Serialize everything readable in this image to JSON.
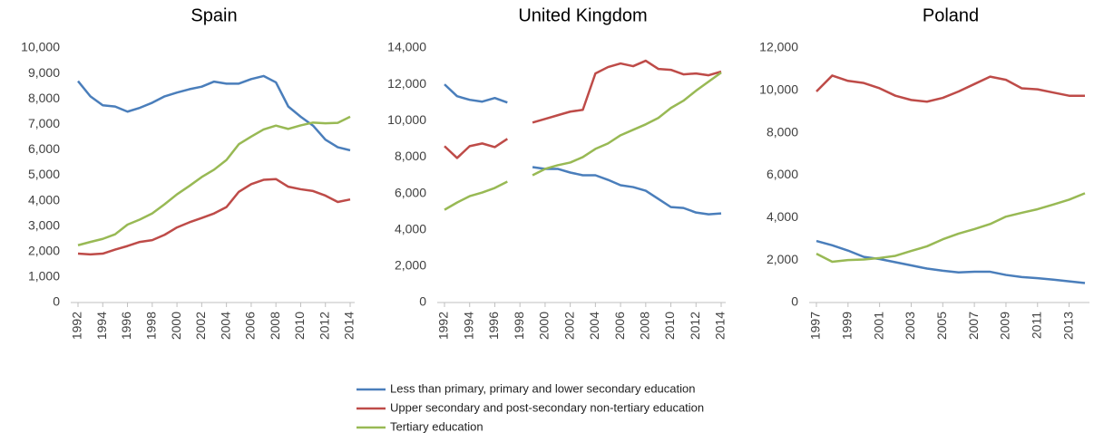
{
  "chart_data": [
    {
      "type": "line",
      "title": "Spain",
      "x": [
        1992,
        1993,
        1994,
        1995,
        1996,
        1997,
        1998,
        1999,
        2000,
        2001,
        2002,
        2003,
        2004,
        2005,
        2006,
        2007,
        2008,
        2009,
        2010,
        2011,
        2012,
        2013,
        2014
      ],
      "xlim": [
        1992,
        2014
      ],
      "xticks": [
        1992,
        1994,
        1996,
        1998,
        2000,
        2002,
        2004,
        2006,
        2008,
        2010,
        2012,
        2014
      ],
      "ylim": [
        0,
        10000
      ],
      "yticks": [
        0,
        {
          "value": 1000,
          "label": "1,000"
        },
        {
          "value": 2000,
          "label": "2,000"
        },
        {
          "value": 3000,
          "label": "3,000"
        },
        {
          "value": 4000,
          "label": "4,000"
        },
        {
          "value": 5000,
          "label": "5,000"
        },
        {
          "value": 6000,
          "label": "6,000"
        },
        {
          "value": 7000,
          "label": "7,000"
        },
        {
          "value": 8000,
          "label": "8,000"
        },
        {
          "value": 9000,
          "label": "9,000"
        },
        {
          "value": 10000,
          "label": "10,000"
        }
      ],
      "series": [
        {
          "name": "Less than primary, primary and lower secondary education",
          "color": "#4a7ebb",
          "values": [
            8700,
            8100,
            7750,
            7700,
            7500,
            7650,
            7850,
            8100,
            8250,
            8380,
            8480,
            8680,
            8600,
            8600,
            8780,
            8900,
            8650,
            7700,
            7300,
            6950,
            6400,
            6100,
            5980
          ]
        },
        {
          "name": "Upper secondary and post-secondary non-tertiary education",
          "color": "#be4b48",
          "values": [
            1920,
            1890,
            1920,
            2080,
            2220,
            2380,
            2450,
            2660,
            2950,
            3150,
            3320,
            3500,
            3750,
            4350,
            4650,
            4820,
            4850,
            4550,
            4450,
            4380,
            4200,
            3950,
            4050
          ]
        },
        {
          "name": "Tertiary education",
          "color": "#98b954",
          "values": [
            2250,
            2380,
            2500,
            2680,
            3060,
            3260,
            3500,
            3860,
            4250,
            4580,
            4930,
            5220,
            5600,
            6220,
            6520,
            6800,
            6950,
            6820,
            6960,
            7070,
            7040,
            7060,
            7300
          ]
        }
      ]
    },
    {
      "type": "line",
      "title": "United Kingdom",
      "x": [
        1992,
        1993,
        1994,
        1995,
        1996,
        1997,
        1998,
        1999,
        2000,
        2001,
        2002,
        2003,
        2004,
        2005,
        2006,
        2007,
        2008,
        2009,
        2010,
        2011,
        2012,
        2013,
        2014
      ],
      "xlim": [
        1992,
        2014
      ],
      "xticks": [
        1992,
        1994,
        1996,
        1998,
        2000,
        2002,
        2004,
        2006,
        2008,
        2010,
        2012,
        2014
      ],
      "ylim": [
        0,
        14000
      ],
      "yticks": [
        0,
        {
          "value": 2000,
          "label": "2,000"
        },
        {
          "value": 4000,
          "label": "4,000"
        },
        {
          "value": 6000,
          "label": "6,000"
        },
        {
          "value": 8000,
          "label": "8,000"
        },
        {
          "value": 10000,
          "label": "10,000"
        },
        {
          "value": 12000,
          "label": "12,000"
        },
        {
          "value": 14000,
          "label": "14,000"
        }
      ],
      "series": [
        {
          "color": "#4a7ebb",
          "values": [
            12000,
            11350,
            11150,
            11050,
            11250,
            11000,
            null,
            7450,
            7350,
            7350,
            7150,
            7000,
            7000,
            6750,
            6450,
            6350,
            6150,
            5700,
            5250,
            5200,
            4950,
            4850,
            4900
          ]
        },
        {
          "color": "#be4b48",
          "values": [
            8600,
            7950,
            8600,
            8750,
            8550,
            9000,
            null,
            9900,
            10100,
            10300,
            10500,
            10600,
            12600,
            12950,
            13150,
            13000,
            13300,
            12850,
            12800,
            12550,
            12600,
            12500,
            12700
          ]
        },
        {
          "color": "#98b954",
          "values": [
            5100,
            5500,
            5850,
            6050,
            6300,
            6650,
            null,
            7000,
            7350,
            7550,
            7700,
            8000,
            8450,
            8750,
            9200,
            9500,
            9800,
            10150,
            10700,
            11100,
            11650,
            12150,
            12650
          ]
        }
      ]
    },
    {
      "type": "line",
      "title": "Poland",
      "x": [
        1997,
        1998,
        1999,
        2000,
        2001,
        2002,
        2003,
        2004,
        2005,
        2006,
        2007,
        2008,
        2009,
        2010,
        2011,
        2012,
        2013,
        2014
      ],
      "xlim": [
        1997,
        2014
      ],
      "xticks": [
        1997,
        1999,
        2001,
        2003,
        2005,
        2007,
        2009,
        2011,
        2013
      ],
      "ylim": [
        0,
        12000
      ],
      "yticks": [
        0,
        {
          "value": 2000,
          "label": "2,000"
        },
        {
          "value": 4000,
          "label": "4,000"
        },
        {
          "value": 6000,
          "label": "6,000"
        },
        {
          "value": 8000,
          "label": "8,000"
        },
        {
          "value": 10000,
          "label": "10,000"
        },
        {
          "value": 12000,
          "label": "12,000"
        }
      ],
      "series": [
        {
          "color": "#4a7ebb",
          "values": [
            2900,
            2700,
            2450,
            2150,
            2050,
            1900,
            1750,
            1600,
            1500,
            1420,
            1450,
            1450,
            1300,
            1200,
            1150,
            1080,
            1000,
            920
          ]
        },
        {
          "color": "#be4b48",
          "values": [
            9950,
            10700,
            10450,
            10350,
            10100,
            9750,
            9550,
            9470,
            9650,
            9950,
            10300,
            10650,
            10500,
            10100,
            10050,
            9900,
            9750,
            9750
          ]
        },
        {
          "color": "#98b954",
          "values": [
            2300,
            1920,
            2000,
            2030,
            2100,
            2200,
            2430,
            2650,
            2980,
            3250,
            3460,
            3700,
            4050,
            4230,
            4400,
            4620,
            4850,
            5150
          ]
        }
      ]
    }
  ]
}
